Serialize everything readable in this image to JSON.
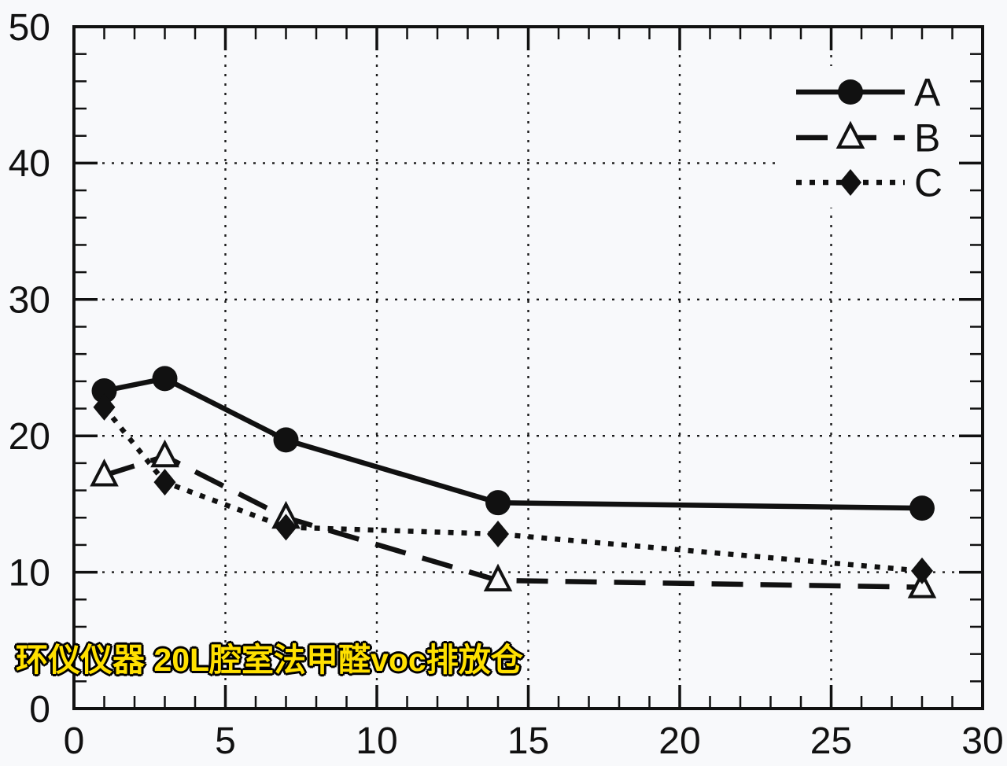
{
  "figure": {
    "background": "#f8f9fb",
    "ink": "#111111",
    "grid_color": "#1a1a1a"
  },
  "watermark": {
    "text": "环仪仪器 20L腔室法甲醛voc排放仓",
    "color": "#ffe000",
    "outline_color": "#000000"
  },
  "chart_data": {
    "type": "line",
    "title": "",
    "xlabel": "",
    "ylabel": "",
    "xlim": [
      0,
      30
    ],
    "ylim": [
      0,
      50
    ],
    "x_major_ticks": [
      0,
      5,
      10,
      15,
      20,
      25,
      30
    ],
    "x_minor_step": 1,
    "y_major_ticks": [
      0,
      10,
      20,
      30,
      40,
      50
    ],
    "y_minor_step": 2,
    "grid": {
      "show": true,
      "style": "dotted",
      "on_major_only": true
    },
    "legend": {
      "position": "top-right",
      "entries": [
        "A",
        "B",
        "C"
      ]
    },
    "x": [
      1,
      3,
      7,
      14,
      28
    ],
    "series": [
      {
        "name": "A",
        "line_style": "solid",
        "marker": "filled-circle",
        "values": [
          23.3,
          24.2,
          19.7,
          15.1,
          14.7
        ]
      },
      {
        "name": "B",
        "line_style": "long-dash",
        "marker": "open-triangle",
        "values": [
          17.1,
          18.5,
          14.0,
          9.4,
          8.9
        ]
      },
      {
        "name": "C",
        "line_style": "dotted",
        "marker": "filled-diamond",
        "values": [
          22.1,
          16.6,
          13.3,
          12.8,
          10.1
        ]
      }
    ]
  }
}
